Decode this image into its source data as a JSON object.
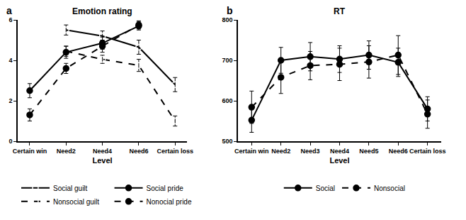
{
  "chart_data": [
    {
      "type": "line",
      "title": "Emotion rating",
      "x_label": "Level",
      "annotations": [
        {
          "text": "a"
        }
      ],
      "categories": [
        "Certain win",
        "Need2",
        "Need4",
        "Need6",
        "Certain loss"
      ],
      "ylim": [
        0,
        6
      ],
      "yticks": [
        0,
        2,
        4,
        6
      ],
      "grid": false,
      "legend": "bottom",
      "series": [
        {
          "name": "Social guilt",
          "color": "#000000",
          "marker": "open circle",
          "line_style": "solid",
          "values": [
            null,
            5.5,
            5.2,
            4.65,
            2.8
          ],
          "errors": [
            null,
            0.25,
            0.25,
            0.35,
            0.35
          ]
        },
        {
          "name": "Nonsocial guilt",
          "color": "#000000",
          "marker": "open circle",
          "line_style": "dash",
          "values": [
            null,
            4.45,
            4.05,
            3.75,
            1.0
          ],
          "errors": [
            null,
            0.25,
            0.2,
            0.3,
            0.25
          ]
        },
        {
          "name": "Social pride",
          "color": "#000000",
          "marker": "circle",
          "line_style": "solid",
          "values": [
            2.5,
            4.4,
            4.85,
            5.7,
            null
          ],
          "errors": [
            0.35,
            0.3,
            0.3,
            0.2,
            null
          ]
        },
        {
          "name": "Nonocial pride",
          "color": "#000000",
          "marker": "circle",
          "line_style": "dash",
          "values": [
            1.3,
            3.6,
            4.7,
            5.75,
            null
          ],
          "errors": [
            0.3,
            0.25,
            0.3,
            0.2,
            null
          ]
        }
      ]
    },
    {
      "type": "line",
      "title": "RT",
      "x_label": "Level",
      "annotations": [
        {
          "text": "b"
        }
      ],
      "categories": [
        "Certain win",
        "Need2",
        "Need3",
        "Need4",
        "Need5",
        "Need6",
        "Certain loss"
      ],
      "ylim": [
        500,
        800
      ],
      "yticks": [
        500,
        600,
        700,
        800
      ],
      "grid": false,
      "legend": "bottom",
      "series": [
        {
          "name": "Social",
          "color": "#000000",
          "marker": "circle",
          "line_style": "solid",
          "values": [
            552,
            700,
            709,
            703,
            713,
            695,
            580
          ],
          "errors": [
            30,
            32,
            35,
            33,
            35,
            35,
            30
          ]
        },
        {
          "name": "Nonsocial",
          "color": "#000000",
          "marker": "circle",
          "line_style": "dash",
          "values": [
            584,
            658,
            687,
            690,
            696,
            713,
            567
          ],
          "errors": [
            40,
            40,
            35,
            40,
            40,
            48,
            35
          ]
        }
      ]
    }
  ]
}
